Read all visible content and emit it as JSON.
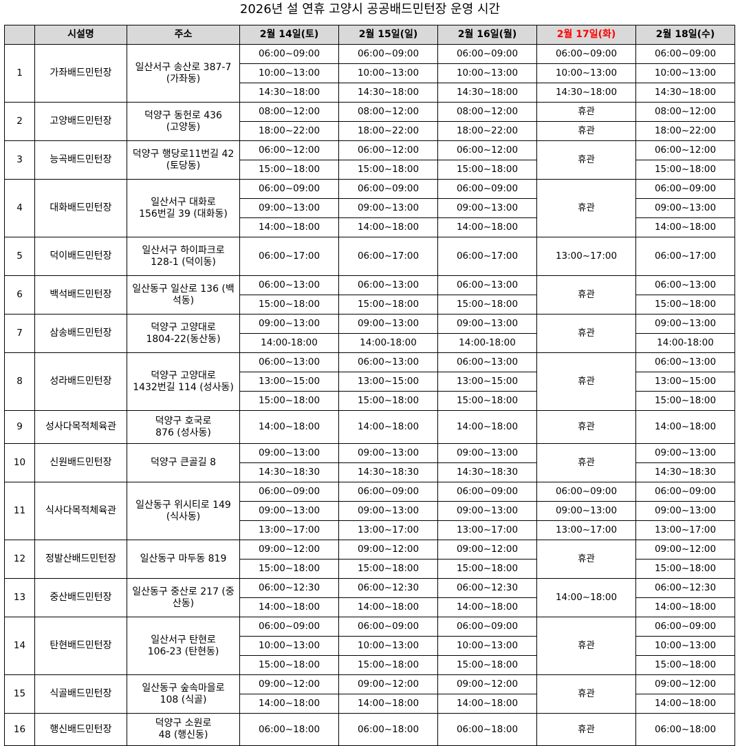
{
  "title": "2026년 설 연휴 고양시 공공배드민턴장 운영 시간",
  "headers": [
    "",
    "시설명",
    "주소",
    "2월 14일(토)",
    "2월 15일(일)",
    "2월 16일(월)",
    "2월 17일(화)",
    "2월 18일(수)"
  ],
  "highlight_header_color": "#ff0000",
  "header_bg": "#d9d9d9",
  "facilities": [
    {
      "no": "1",
      "name": "가좌배드민턴장",
      "address": "일산서구 송산로 387-7\n(가좌동)",
      "rows": 3,
      "schedule": [
        [
          "06:00~09:00",
          "10:00~13:00",
          "14:30~18:00"
        ],
        [
          "06:00~09:00",
          "10:00~13:00",
          "14:30~18:00"
        ],
        [
          "06:00~09:00",
          "10:00~13:00",
          "14:30~18:00"
        ],
        [
          "06:00~09:00",
          "10:00~13:00",
          "14:30~18:00"
        ],
        [
          "06:00~09:00",
          "10:00~13:00",
          "14:30~18:00"
        ]
      ]
    },
    {
      "no": "2",
      "name": "고양배드민턴장",
      "address": "덕양구 동헌로 436\n(고양동)",
      "rows": 2,
      "schedule": [
        [
          "08:00~12:00",
          "18:00~22:00"
        ],
        [
          "08:00~12:00",
          "18:00~22:00"
        ],
        [
          "08:00~12:00",
          "18:00~22:00"
        ],
        [
          "휴관",
          "휴관"
        ],
        [
          "08:00~12:00",
          "18:00~22:00"
        ]
      ]
    },
    {
      "no": "3",
      "name": "능곡배드민턴장",
      "address": "덕양구 행당로11번길 42\n(토당동)",
      "rows": 2,
      "schedule": [
        [
          "06:00~12:00",
          "15:00~18:00"
        ],
        [
          "06:00~12:00",
          "15:00~18:00"
        ],
        [
          "06:00~12:00",
          "15:00~18:00"
        ],
        [
          "휴관"
        ],
        [
          "06:00~12:00",
          "15:00~18:00"
        ]
      ]
    },
    {
      "no": "4",
      "name": "대화배드민턴장",
      "address": "일산서구 대화로\n156번길 39 (대화동)",
      "rows": 3,
      "schedule": [
        [
          "06:00~09:00",
          "09:00~13:00",
          "14:00~18:00"
        ],
        [
          "06:00~09:00",
          "09:00~13:00",
          "14:00~18:00"
        ],
        [
          "06:00~09:00",
          "09:00~13:00",
          "14:00~18:00"
        ],
        [
          "휴관"
        ],
        [
          "06:00~09:00",
          "09:00~13:00",
          "14:00~18:00"
        ]
      ]
    },
    {
      "no": "5",
      "name": "덕이배드민턴장",
      "address": "일산서구 하이파크로\n128-1 (덕이동)",
      "rows": 1,
      "schedule": [
        [
          "06:00~17:00"
        ],
        [
          "06:00~17:00"
        ],
        [
          "06:00~17:00"
        ],
        [
          "13:00~17:00"
        ],
        [
          "06:00~17:00"
        ]
      ]
    },
    {
      "no": "6",
      "name": "백석배드민턴장",
      "address": "일산동구 일산로 136 (백\n석동)",
      "rows": 2,
      "schedule": [
        [
          "06:00~13:00",
          "15:00~18:00"
        ],
        [
          "06:00~13:00",
          "15:00~18:00"
        ],
        [
          "06:00~13:00",
          "15:00~18:00"
        ],
        [
          "휴관"
        ],
        [
          "06:00~13:00",
          "15:00~18:00"
        ]
      ]
    },
    {
      "no": "7",
      "name": "삼송배드민턴장",
      "address": "덕양구 고양대로\n1804-22(동산동)",
      "rows": 2,
      "schedule": [
        [
          "09:00~13:00",
          "14:00-18:00"
        ],
        [
          "09:00~13:00",
          "14:00-18:00"
        ],
        [
          "09:00~13:00",
          "14:00-18:00"
        ],
        [
          "휴관"
        ],
        [
          "09:00~13:00",
          "14:00-18:00"
        ]
      ]
    },
    {
      "no": "8",
      "name": "성라배드민턴장",
      "address": "덕양구 고양대로\n1432번길 114 (성사동)",
      "rows": 3,
      "schedule": [
        [
          "06:00~13:00",
          "13:00~15:00",
          "15:00~18:00"
        ],
        [
          "06:00~13:00",
          "13:00~15:00",
          "15:00~18:00"
        ],
        [
          "06:00~13:00",
          "13:00~15:00",
          "15:00~18:00"
        ],
        [
          "휴관"
        ],
        [
          "06:00~13:00",
          "13:00~15:00",
          "15:00~18:00"
        ]
      ]
    },
    {
      "no": "9",
      "name": "성사다목적체육관",
      "address": "덕양구 호국로\n876 (성사동)",
      "rows": 1,
      "schedule": [
        [
          "14:00~18:00"
        ],
        [
          "14:00~18:00"
        ],
        [
          "14:00~18:00"
        ],
        [
          "휴관"
        ],
        [
          "14:00~18:00"
        ]
      ]
    },
    {
      "no": "10",
      "name": "신원배드민턴장",
      "address": "덕양구 큰골길 8",
      "rows": 2,
      "schedule": [
        [
          "09:00~13:00",
          "14:30~18:30"
        ],
        [
          "09:00~13:00",
          "14:30~18:30"
        ],
        [
          "09:00~13:00",
          "14:30~18:30"
        ],
        [
          "휴관"
        ],
        [
          "09:00~13:00",
          "14:30~18:30"
        ]
      ]
    },
    {
      "no": "11",
      "name": "식사다목적체육관",
      "address": "일산동구 위시티로 149\n(식사동)",
      "rows": 3,
      "schedule": [
        [
          "06:00~09:00",
          "09:00~13:00",
          "13:00~17:00"
        ],
        [
          "06:00~09:00",
          "09:00~13:00",
          "13:00~17:00"
        ],
        [
          "06:00~09:00",
          "09:00~13:00",
          "13:00~17:00"
        ],
        [
          "06:00~09:00",
          "09:00~13:00",
          "13:00~17:00"
        ],
        [
          "06:00~09:00",
          "09:00~13:00",
          "13:00~17:00"
        ]
      ]
    },
    {
      "no": "12",
      "name": "정발산배드민턴장",
      "address": "일산동구 마두동 819",
      "rows": 2,
      "schedule": [
        [
          "09:00~12:00",
          "15:00~18:00"
        ],
        [
          "09:00~12:00",
          "15:00~18:00"
        ],
        [
          "09:00~12:00",
          "15:00~18:00"
        ],
        [
          "휴관"
        ],
        [
          "09:00~12:00",
          "15:00~18:00"
        ]
      ]
    },
    {
      "no": "13",
      "name": "중산배드민턴장",
      "address": "일산동구 중산로 217 (중\n산동)",
      "rows": 2,
      "schedule": [
        [
          "06:00~12:30",
          "14:00~18:00"
        ],
        [
          "06:00~12:30",
          "14:00~18:00"
        ],
        [
          "06:00~12:30",
          "14:00~18:00"
        ],
        [
          "14:00~18:00"
        ],
        [
          "06:00~12:30",
          "14:00~18:00"
        ]
      ]
    },
    {
      "no": "14",
      "name": "탄현배드민턴장",
      "address": "일산서구 탄현로\n106-23 (탄현동)",
      "rows": 3,
      "schedule": [
        [
          "06:00~09:00",
          "10:00~13:00",
          "15:00~18:00"
        ],
        [
          "06:00~09:00",
          "10:00~13:00",
          "15:00~18:00"
        ],
        [
          "06:00~09:00",
          "10:00~13:00",
          "15:00~18:00"
        ],
        [
          "휴관"
        ],
        [
          "06:00~09:00",
          "10:00~13:00",
          "15:00~18:00"
        ]
      ]
    },
    {
      "no": "15",
      "name": "식골배드민턴장",
      "address": "일산동구 숲속마을로\n108 (식골)",
      "rows": 2,
      "schedule": [
        [
          "09:00~12:00",
          "14:00~18:00"
        ],
        [
          "09:00~12:00",
          "14:00~18:00"
        ],
        [
          "09:00~12:00",
          "14:00~18:00"
        ],
        [
          "휴관"
        ],
        [
          "09:00~12:00",
          "14:00~18:00"
        ]
      ]
    },
    {
      "no": "16",
      "name": "행신배드민턴장",
      "address": "덕양구 소원로\n48 (행신동)",
      "rows": 1,
      "schedule": [
        [
          "06:00~18:00"
        ],
        [
          "06:00~18:00"
        ],
        [
          "06:00~18:00"
        ],
        [
          "휴관"
        ],
        [
          "06:00~18:00"
        ]
      ]
    }
  ]
}
